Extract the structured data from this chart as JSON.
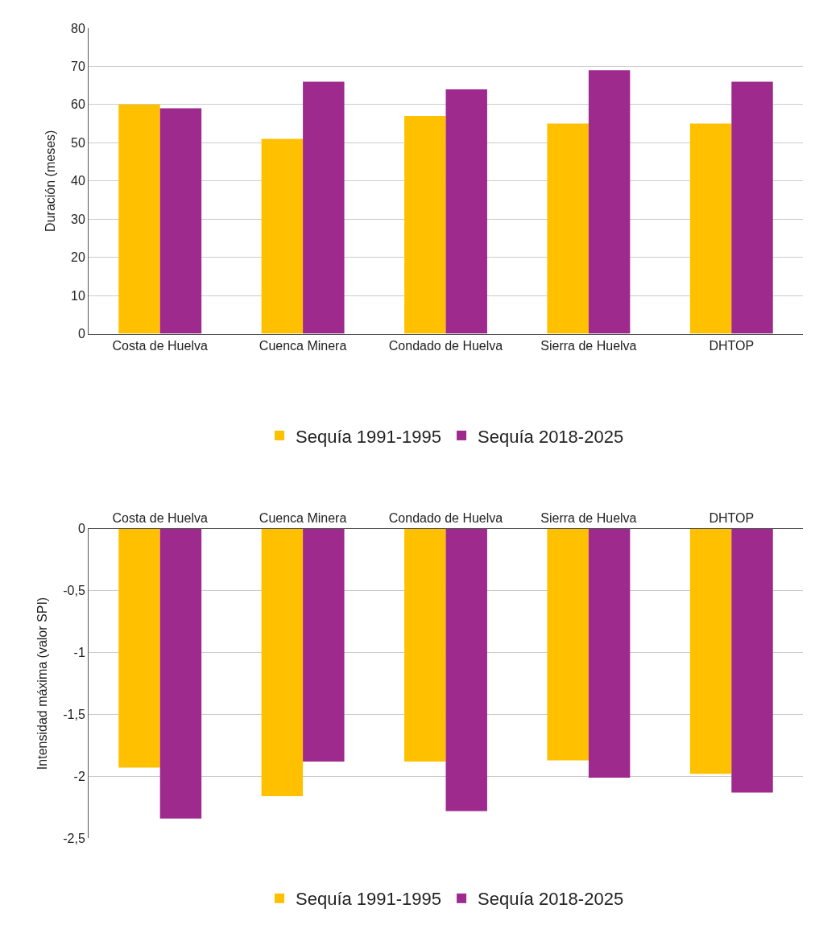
{
  "chart_data": [
    {
      "type": "bar",
      "ylabel": "Duración (meses)",
      "categories": [
        "Costa de Huelva",
        "Cuenca Minera",
        "Condado de Huelva",
        "Sierra de Huelva",
        "DHTOP"
      ],
      "series": [
        {
          "name": "Sequía 1991-1995",
          "color": "#ffc000",
          "values": [
            60,
            51,
            57,
            55,
            55
          ]
        },
        {
          "name": "Sequía 2018-2025",
          "color": "#9e2a8e",
          "values": [
            59,
            66,
            64,
            69,
            66
          ]
        }
      ],
      "ylim": [
        0,
        80
      ],
      "yticks": [
        0,
        10,
        20,
        30,
        40,
        50,
        60,
        70,
        80
      ],
      "grid": "y",
      "legend": "bottom"
    },
    {
      "type": "bar",
      "ylabel": "Intensidad máxima (valor SPI)",
      "categories": [
        "Costa de Huelva",
        "Cuenca Minera",
        "Condado de Huelva",
        "Sierra de Huelva",
        "DHTOP"
      ],
      "series": [
        {
          "name": "Sequía 1991-1995",
          "color": "#ffc000",
          "values": [
            -1.93,
            -2.16,
            -1.88,
            -1.87,
            -1.98
          ]
        },
        {
          "name": "Sequía 2018-2025",
          "color": "#9e2a8e",
          "values": [
            -2.34,
            -1.88,
            -2.28,
            -2.01,
            -2.13
          ]
        }
      ],
      "ylim": [
        -2.5,
        0
      ],
      "yticks": [
        {
          "value": -2.5,
          "label": "-2,5"
        },
        {
          "value": -2,
          "label": "-2"
        },
        {
          "value": -1.5,
          "label": "-1,5"
        },
        {
          "value": -1,
          "label": "-1"
        },
        {
          "value": -0.5,
          "label": "-0,5"
        },
        {
          "value": 0,
          "label": "0"
        }
      ],
      "grid": "y",
      "legend": "bottom"
    }
  ]
}
